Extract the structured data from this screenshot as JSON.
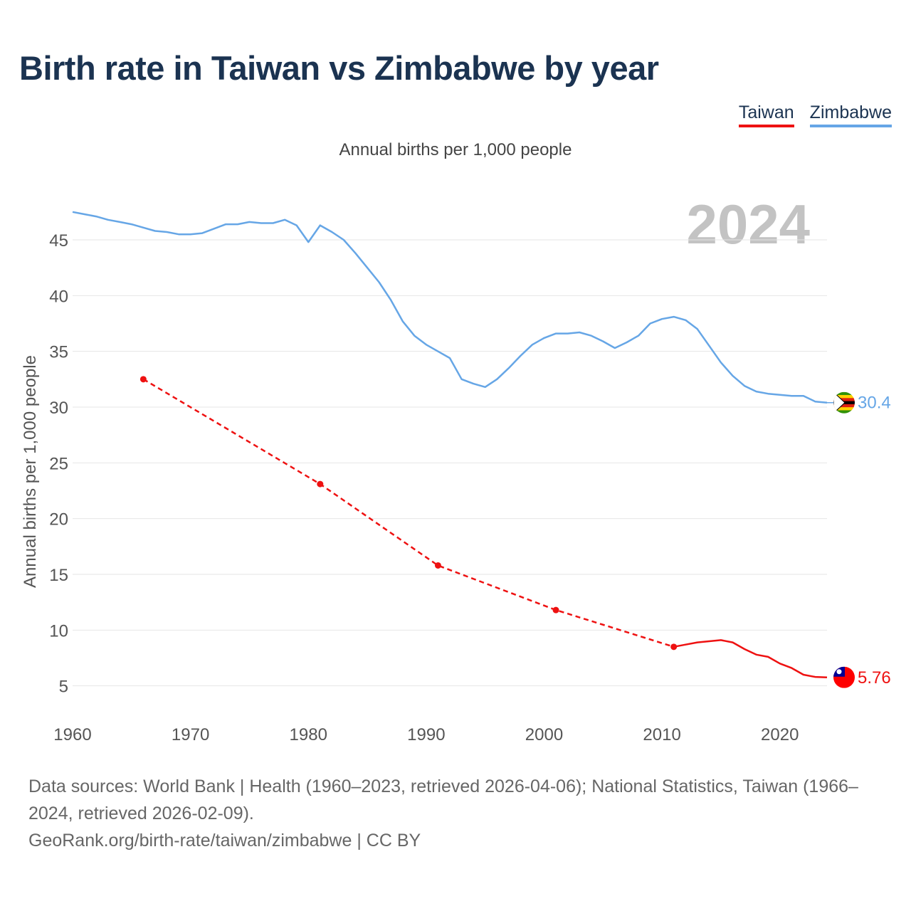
{
  "title": "Birth rate in Taiwan vs Zimbabwe by year",
  "legend": [
    {
      "label": "Taiwan",
      "color": "#ee1111"
    },
    {
      "label": "Zimbabwe",
      "color": "#66a6e6"
    }
  ],
  "chart_data": {
    "type": "line",
    "title": "Birth rate in Taiwan vs Zimbabwe by year",
    "subtitle": "Annual births per 1,000 people",
    "ylabel": "Annual births per 1,000 people",
    "xlabel": "",
    "xlim": [
      1960,
      2024
    ],
    "ylim": [
      3,
      48
    ],
    "xticks": [
      1960,
      1970,
      1980,
      1990,
      2000,
      2010,
      2020
    ],
    "yticks": [
      5,
      10,
      15,
      20,
      25,
      30,
      35,
      40,
      45
    ],
    "year_label": "2024",
    "series": [
      {
        "name": "Zimbabwe",
        "color": "#66a6e6",
        "end_label": "30.4",
        "x": [
          1960,
          1961,
          1962,
          1963,
          1964,
          1965,
          1966,
          1967,
          1968,
          1969,
          1970,
          1971,
          1972,
          1973,
          1974,
          1975,
          1976,
          1977,
          1978,
          1979,
          1980,
          1981,
          1982,
          1983,
          1984,
          1985,
          1986,
          1987,
          1988,
          1989,
          1990,
          1991,
          1992,
          1993,
          1994,
          1995,
          1996,
          1997,
          1998,
          1999,
          2000,
          2001,
          2002,
          2003,
          2004,
          2005,
          2006,
          2007,
          2008,
          2009,
          2010,
          2011,
          2012,
          2013,
          2014,
          2015,
          2016,
          2017,
          2018,
          2019,
          2020,
          2021,
          2022,
          2023,
          2024
        ],
        "y": [
          47.5,
          47.3,
          47.1,
          46.8,
          46.6,
          46.4,
          46.1,
          45.8,
          45.7,
          45.5,
          45.5,
          45.6,
          46.0,
          46.4,
          46.4,
          46.6,
          46.5,
          46.5,
          46.8,
          46.3,
          44.8,
          46.3,
          45.7,
          45.0,
          43.8,
          42.5,
          41.2,
          39.6,
          37.7,
          36.4,
          35.6,
          35.0,
          34.4,
          32.5,
          32.1,
          31.8,
          32.5,
          33.5,
          34.6,
          35.6,
          36.2,
          36.6,
          36.6,
          36.7,
          36.4,
          35.9,
          35.3,
          35.8,
          36.4,
          37.5,
          37.9,
          38.1,
          37.8,
          37.0,
          35.5,
          34.0,
          32.8,
          31.9,
          31.4,
          31.2,
          31.1,
          31.0,
          31.0,
          30.5,
          30.4
        ]
      },
      {
        "name": "Taiwan",
        "color": "#ee1111",
        "end_label": "5.76",
        "sparse_points": {
          "x": [
            1966,
            1981,
            1991,
            2001,
            2011
          ],
          "y": [
            32.5,
            23.1,
            15.8,
            11.8,
            8.5
          ]
        },
        "x": [
          2011,
          2012,
          2013,
          2014,
          2015,
          2016,
          2017,
          2018,
          2019,
          2020,
          2021,
          2022,
          2023,
          2024
        ],
        "y": [
          8.5,
          8.7,
          8.9,
          9.0,
          9.1,
          8.9,
          8.3,
          7.8,
          7.6,
          7.0,
          6.6,
          6.0,
          5.8,
          5.76
        ]
      }
    ]
  },
  "footer": {
    "sources": "Data sources: World Bank | Health (1960–2023, retrieved 2026-04-06); National Statistics, Taiwan (1966–2024, retrieved 2026-02-09).",
    "credit": "GeoRank.org/birth-rate/taiwan/zimbabwe | CC BY"
  }
}
